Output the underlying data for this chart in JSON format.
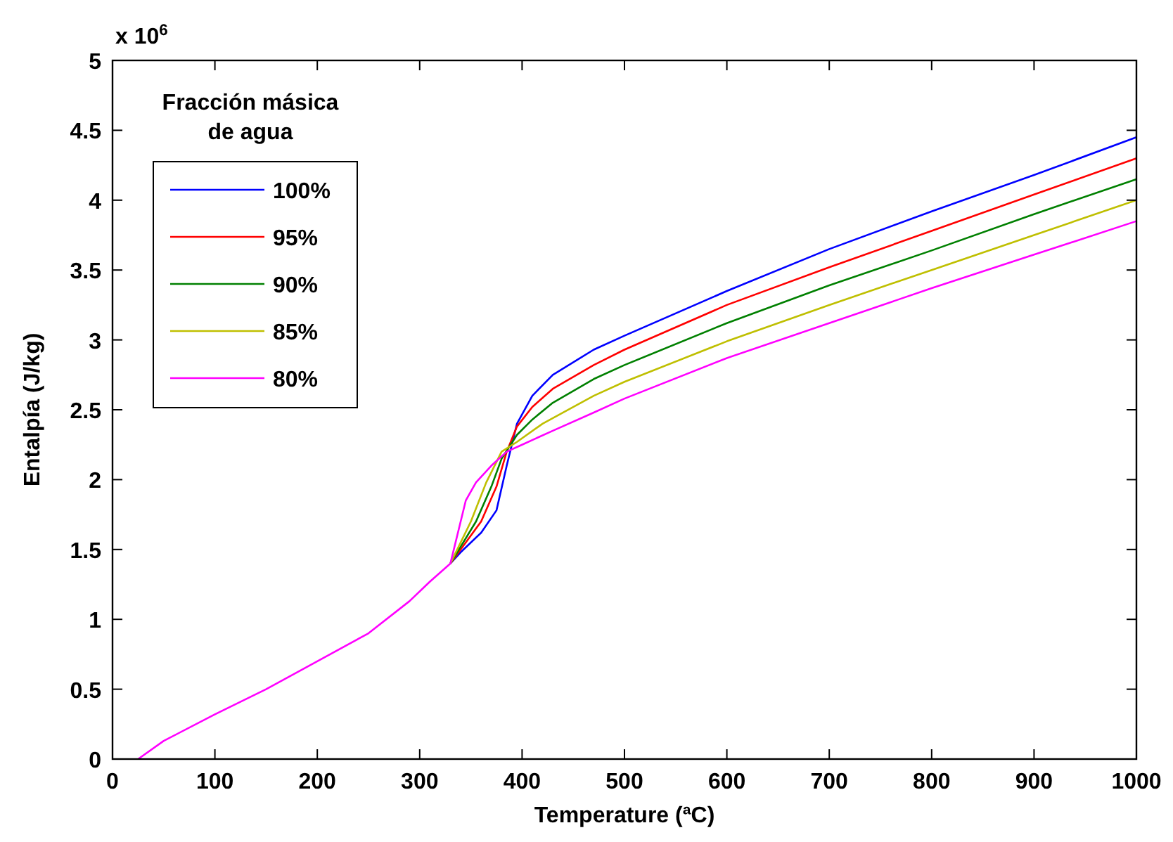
{
  "chart_data": {
    "type": "line",
    "xlabel": "Temperature (ªC)",
    "ylabel": "Entalpía (J/kg)",
    "legend_title": "Fracción másica de agua",
    "legend": "top left",
    "annotations": [
      "x 10$^{6}$"
    ],
    "xlim": [
      0,
      1000
    ],
    "xticks": [
      0,
      100,
      200,
      300,
      400,
      500,
      600,
      700,
      800,
      900,
      1000
    ],
    "ylim": [
      0,
      5
    ],
    "yticks": [
      0,
      0.5,
      1,
      1.5,
      2,
      2.5,
      3,
      3.5,
      4,
      4.5,
      5
    ],
    "line_style": "solid",
    "marker": "none",
    "series": [
      {
        "name": "100%",
        "color": "#0000ff",
        "x": [
          330,
          340,
          360,
          375,
          385,
          395,
          410,
          430,
          470,
          500,
          600,
          700,
          800,
          900,
          1000
        ],
        "values": [
          1.4,
          1.48,
          1.62,
          1.78,
          2.1,
          2.4,
          2.6,
          2.75,
          2.93,
          3.03,
          3.35,
          3.65,
          3.92,
          4.18,
          4.45
        ]
      },
      {
        "name": "95%",
        "color": "#ff0000",
        "x": [
          330,
          340,
          360,
          375,
          385,
          395,
          410,
          430,
          470,
          500,
          600,
          700,
          800,
          900,
          1000
        ],
        "values": [
          1.4,
          1.5,
          1.7,
          1.95,
          2.2,
          2.38,
          2.52,
          2.65,
          2.82,
          2.93,
          3.25,
          3.52,
          3.78,
          4.04,
          4.3
        ]
      },
      {
        "name": "90%",
        "color": "#008000",
        "x": [
          330,
          340,
          355,
          370,
          380,
          395,
          410,
          430,
          470,
          500,
          600,
          700,
          800,
          900,
          1000
        ],
        "values": [
          1.4,
          1.52,
          1.7,
          1.95,
          2.15,
          2.32,
          2.43,
          2.55,
          2.72,
          2.82,
          3.12,
          3.39,
          3.64,
          3.9,
          4.15
        ]
      },
      {
        "name": "85%",
        "color": "#bfbf00",
        "x": [
          330,
          340,
          350,
          365,
          380,
          395,
          420,
          470,
          500,
          600,
          700,
          800,
          900,
          1000
        ],
        "values": [
          1.4,
          1.55,
          1.7,
          1.98,
          2.2,
          2.27,
          2.4,
          2.6,
          2.7,
          2.99,
          3.25,
          3.5,
          3.75,
          4.0
        ]
      },
      {
        "name": "80%",
        "color": "#ff00ff",
        "x": [
          25,
          50,
          100,
          150,
          200,
          250,
          290,
          310,
          330,
          335,
          345,
          355,
          370,
          385,
          400,
          430,
          470,
          500,
          600,
          700,
          800,
          900,
          1000
        ],
        "values": [
          0,
          0.13,
          0.32,
          0.5,
          0.7,
          0.9,
          1.13,
          1.27,
          1.4,
          1.55,
          1.85,
          1.98,
          2.1,
          2.2,
          2.25,
          2.35,
          2.48,
          2.58,
          2.87,
          3.12,
          3.37,
          3.61,
          3.85
        ]
      }
    ]
  }
}
